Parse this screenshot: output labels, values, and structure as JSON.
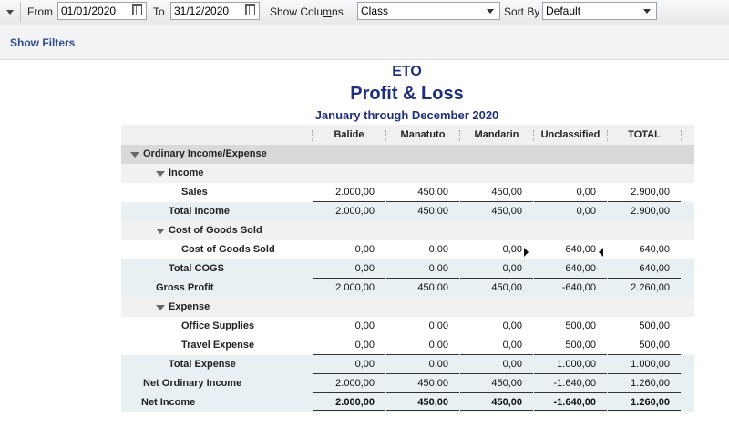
{
  "toolbar": {
    "from_label": "From",
    "from_value": "01/01/2020",
    "to_label": "To",
    "to_value": "31/12/2020",
    "show_columns_prefix": "Show Colu",
    "show_columns_underlined": "m",
    "show_columns_suffix": "ns",
    "show_columns_value": "Class",
    "sort_by_label": "Sort By",
    "sort_by_value": "Default"
  },
  "filters": {
    "show_filters_label": "Show Filters"
  },
  "report": {
    "company": "ETO",
    "title": "Profit & Loss",
    "period": "January through December 2020",
    "columns": [
      "Balide",
      "Manatuto",
      "Mandarin",
      "Unclassified",
      "TOTAL"
    ],
    "rows": {
      "ordinary": {
        "label": "Ordinary Income/Expense"
      },
      "income": {
        "label": "Income"
      },
      "sales": {
        "label": "Sales",
        "values": [
          "2.000,00",
          "450,00",
          "450,00",
          "0,00",
          "2.900,00"
        ]
      },
      "total_income": {
        "label": "Total Income",
        "values": [
          "2.000,00",
          "450,00",
          "450,00",
          "0,00",
          "2.900,00"
        ]
      },
      "cogs_header": {
        "label": "Cost of Goods Sold"
      },
      "cogs": {
        "label": "Cost of Goods Sold",
        "values": [
          "0,00",
          "0,00",
          "0,00",
          "640,00",
          "640,00"
        ]
      },
      "total_cogs": {
        "label": "Total COGS",
        "values": [
          "0,00",
          "0,00",
          "0,00",
          "640,00",
          "640,00"
        ]
      },
      "gross_profit": {
        "label": "Gross Profit",
        "values": [
          "2.000,00",
          "450,00",
          "450,00",
          "-640,00",
          "2.260,00"
        ]
      },
      "expense": {
        "label": "Expense"
      },
      "office": {
        "label": "Office Supplies",
        "values": [
          "0,00",
          "0,00",
          "0,00",
          "500,00",
          "500,00"
        ]
      },
      "travel": {
        "label": "Travel Expense",
        "values": [
          "0,00",
          "0,00",
          "0,00",
          "500,00",
          "500,00"
        ]
      },
      "total_expense": {
        "label": "Total Expense",
        "values": [
          "0,00",
          "0,00",
          "0,00",
          "1.000,00",
          "1.000,00"
        ]
      },
      "net_ordinary": {
        "label": "Net Ordinary Income",
        "values": [
          "2.000,00",
          "450,00",
          "450,00",
          "-1.640,00",
          "1.260,00"
        ]
      },
      "net_income": {
        "label": "Net Income",
        "values": [
          "2.000,00",
          "450,00",
          "450,00",
          "-1.640,00",
          "1.260,00"
        ]
      }
    }
  }
}
